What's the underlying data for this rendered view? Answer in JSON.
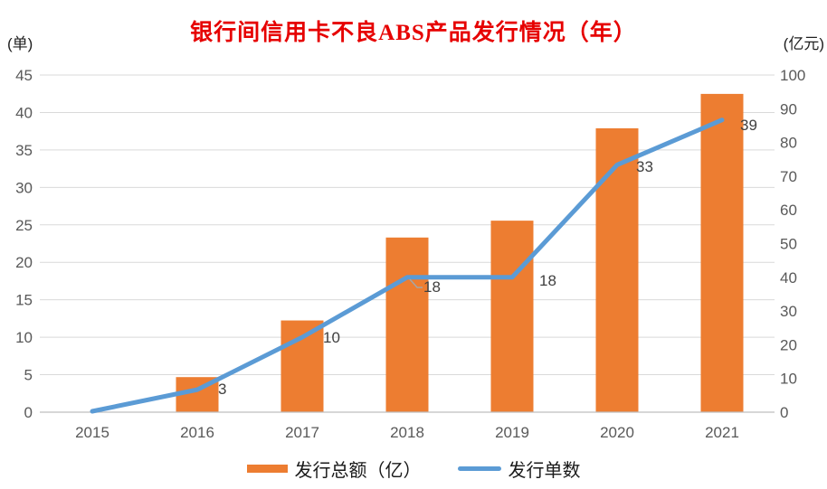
{
  "chart_data": {
    "type": "combo",
    "title": "银行间信用卡不良ABS产品发行情况（年）",
    "title_color": "#e60000",
    "categories": [
      "2015",
      "2016",
      "2017",
      "2018",
      "2019",
      "2020",
      "2021"
    ],
    "series": [
      {
        "name": "发行总额（亿）",
        "type": "bar",
        "axis": "right",
        "color": "#ED7D31",
        "values": [
          0,
          10.4,
          27.2,
          51.8,
          56.8,
          84.2,
          94.4
        ]
      },
      {
        "name": "发行单数",
        "type": "line",
        "axis": "left",
        "color": "#5B9BD5",
        "values": [
          0,
          3,
          10,
          18,
          18,
          33,
          39
        ],
        "data_labels": [
          null,
          "3",
          "10",
          "18",
          "18",
          "33",
          "39"
        ]
      }
    ],
    "left_axis": {
      "unit": "(单)",
      "min": 0,
      "max": 45,
      "step": 5,
      "ticks": [
        "45",
        "40",
        "35",
        "30",
        "25",
        "20",
        "15",
        "10",
        "5",
        "0"
      ]
    },
    "right_axis": {
      "unit": "(亿元)",
      "min": 0,
      "max": 100,
      "step": 10,
      "ticks": [
        "100",
        "90",
        "80",
        "70",
        "60",
        "50",
        "40",
        "30",
        "20",
        "10",
        "0"
      ]
    },
    "grid": true,
    "legend_position": "bottom",
    "colors": {
      "gridline": "#D9D9D9",
      "axis_line": "#BFBFBF",
      "tick_label": "#595959",
      "data_label": "#404040",
      "leader_line": "#A6A6A6"
    }
  }
}
